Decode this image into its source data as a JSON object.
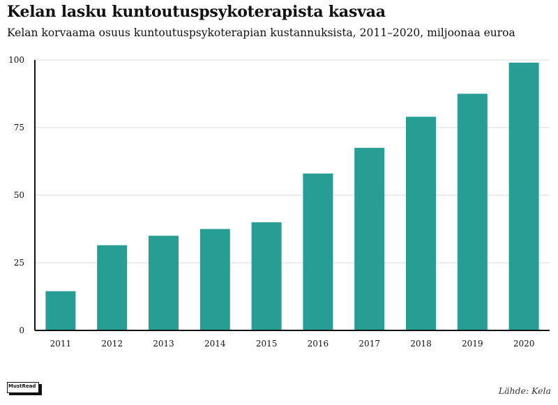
{
  "title": "Kelan lasku kuntoutuspsykoterapista kasvaa",
  "subtitle": "Kelan korvaama osuus kuntoutuspsykoterapian kustannuksista, 2011–2020, miljoonaa euroa",
  "source": "Lähde: Kela",
  "logo_text": "MustRead",
  "colors": {
    "bar": "#269e93",
    "grid": "#d9d9d9",
    "axis": "#111111"
  },
  "chart_data": {
    "type": "bar",
    "title": "Kelan lasku kuntoutuspsykoterapista kasvaa",
    "subtitle": "Kelan korvaama osuus kuntoutuspsykoterapian kustannuksista, 2011–2020, miljoonaa euroa",
    "categories": [
      "2011",
      "2012",
      "2013",
      "2014",
      "2015",
      "2016",
      "2017",
      "2018",
      "2019",
      "2020"
    ],
    "values": [
      14.5,
      31.5,
      35,
      37.5,
      40,
      58,
      67.5,
      79,
      87.5,
      99
    ],
    "ylim": [
      0,
      100
    ],
    "yticks": [
      0,
      25,
      50,
      75,
      100
    ],
    "xlabel": "",
    "ylabel": "",
    "grid": true
  }
}
